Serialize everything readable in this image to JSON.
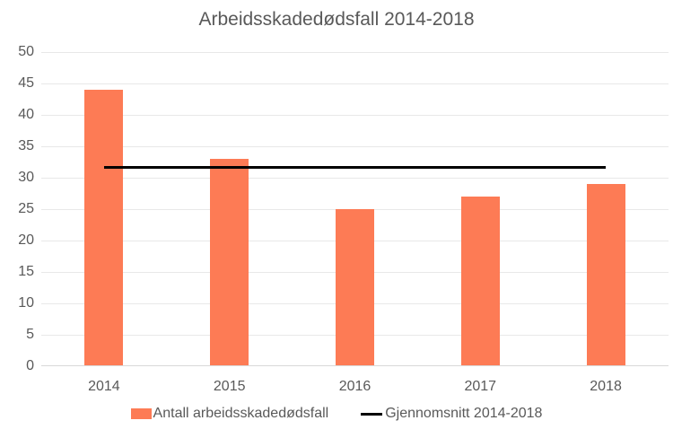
{
  "chart_data": {
    "type": "bar",
    "title": "Arbeidsskadedødsfall 2014-2018",
    "categories": [
      "2014",
      "2015",
      "2016",
      "2017",
      "2018"
    ],
    "series": [
      {
        "name": "Antall arbeidsskadedødsfall",
        "type": "bar",
        "values": [
          44,
          33,
          25,
          27,
          29
        ],
        "color": "#FD7B55"
      },
      {
        "name": "Gjennomsnitt 2014-2018",
        "type": "line",
        "values": [
          31.6,
          31.6,
          31.6,
          31.6,
          31.6
        ],
        "color": "#000000"
      }
    ],
    "average_value": 31.6,
    "xlabel": "",
    "ylabel": "",
    "ylim": [
      0,
      50
    ],
    "yticks": [
      0,
      5,
      10,
      15,
      20,
      25,
      30,
      35,
      40,
      45,
      50
    ],
    "grid": true,
    "legend_position": "bottom",
    "colors": {
      "bar": "#FD7B55",
      "line": "#000000",
      "text": "#595959",
      "grid": "#E8E8E8",
      "axis": "#D9D9D9"
    }
  }
}
